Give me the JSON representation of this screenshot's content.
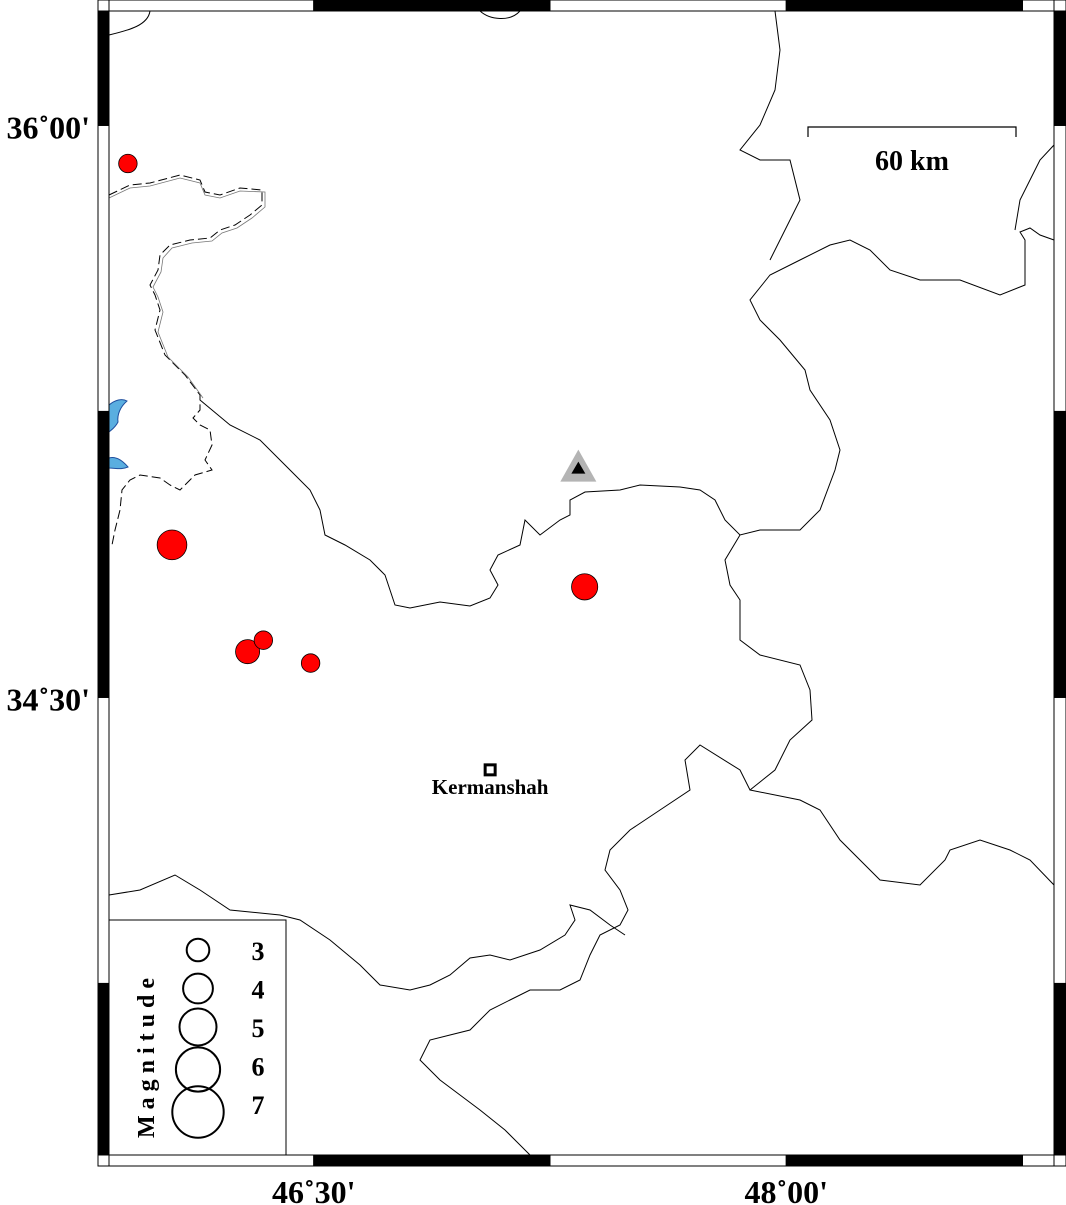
{
  "map": {
    "extent": {
      "lon": [
        45.85,
        48.85
      ],
      "lat": [
        33.3,
        36.3
      ]
    },
    "axes": {
      "lat_ticks": [
        {
          "value": 36.0,
          "label": "36˚00'"
        },
        {
          "value": 34.5,
          "label": "34˚30'"
        }
      ],
      "lon_ticks": [
        {
          "value": 46.5,
          "label": "46˚30'"
        },
        {
          "value": 48.0,
          "label": "48˚00'"
        }
      ]
    },
    "scale_bar": {
      "label": "60 km",
      "length_km": 60
    },
    "cities": [
      {
        "name": "Kermanshah",
        "lon": 47.06,
        "lat": 34.31
      }
    ],
    "stations": [
      {
        "lon": 47.34,
        "lat": 35.1,
        "symbol": "triangle"
      }
    ],
    "events": [
      {
        "lon": 45.91,
        "lat": 35.9,
        "mag": 2.5
      },
      {
        "lon": 46.05,
        "lat": 34.9,
        "mag": 4.1
      },
      {
        "lon": 46.29,
        "lat": 34.62,
        "mag": 3.3
      },
      {
        "lon": 46.34,
        "lat": 34.65,
        "mag": 2.5
      },
      {
        "lon": 46.49,
        "lat": 34.59,
        "mag": 2.5
      },
      {
        "lon": 47.36,
        "lat": 34.79,
        "mag": 3.6
      }
    ],
    "legend": {
      "title": "Magnitude",
      "items": [
        {
          "mag": 3,
          "label": "3"
        },
        {
          "mag": 4,
          "label": "4"
        },
        {
          "mag": 5,
          "label": "5"
        },
        {
          "mag": 6,
          "label": "6"
        },
        {
          "mag": 7,
          "label": "7"
        }
      ]
    },
    "colors": {
      "event": "#ff0000",
      "water": "#5aaee0",
      "station_halo": "#b4b4b4",
      "station": "#000000"
    }
  }
}
